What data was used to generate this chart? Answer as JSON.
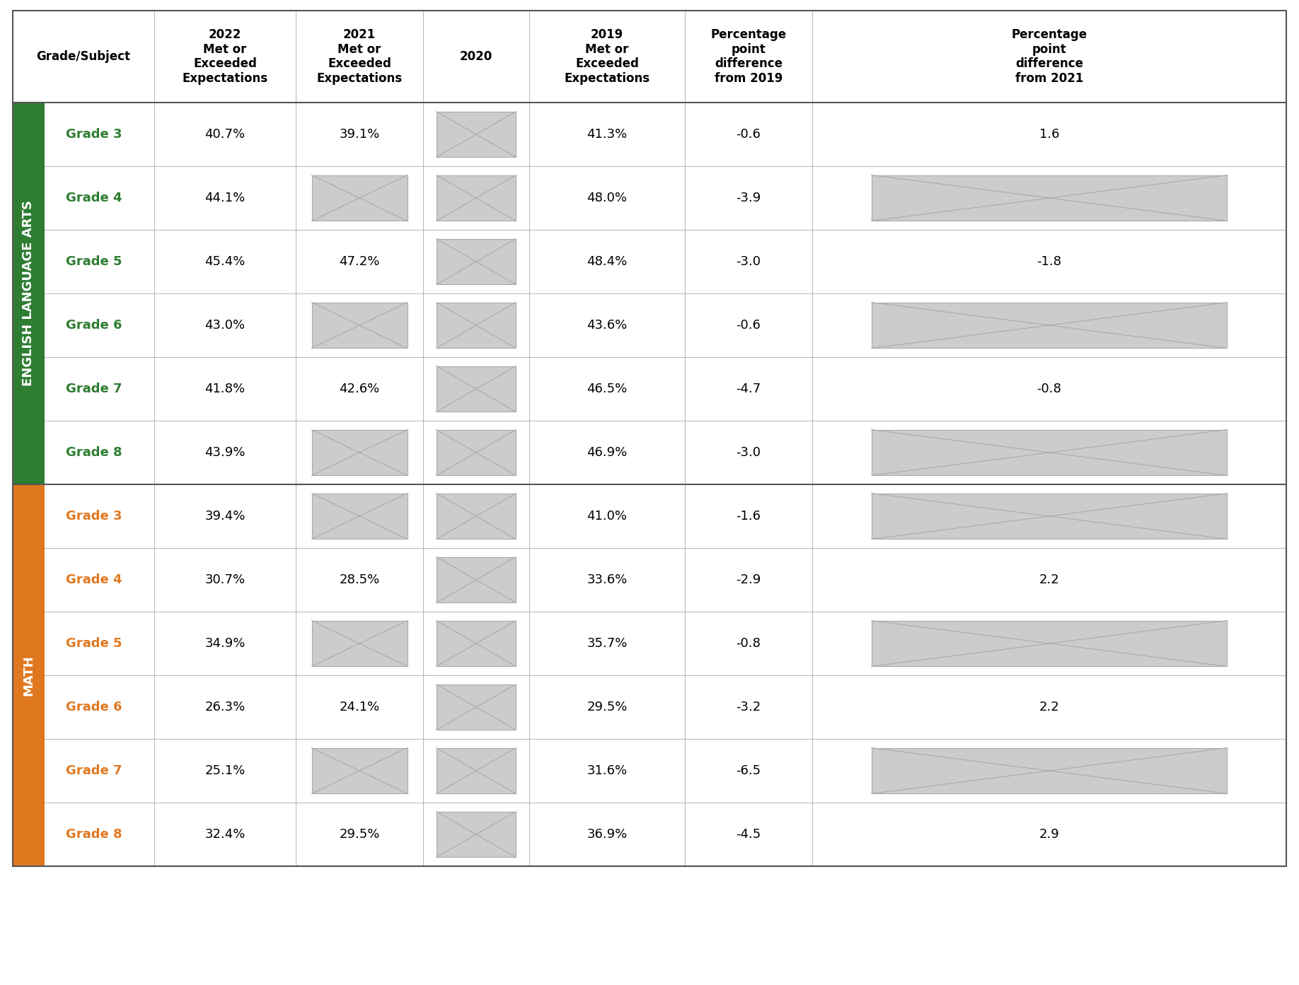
{
  "title_bg": "#ffffff",
  "header_bg": "#ffffff",
  "ela_color": "#2e7d32",
  "math_color": "#e07820",
  "grade_label_ela_color": "#2e7d32",
  "grade_label_math_color": "#e07820",
  "header_text_color": "#000000",
  "cell_text_color": "#000000",
  "na_box_color": "#cccccc",
  "na_box_line_color": "#aaaaaa",
  "row_line_color": "#bbbbbb",
  "section_line_color": "#555555",
  "outer_line_color": "#555555",
  "col_headers": [
    "Grade/Subject",
    "2022\nMet or\nExceeded\nExpectations",
    "2021\nMet or\nExceeded\nExpectations",
    "2020",
    "2019\nMet or\nExceeded\nExpectations",
    "Percentage\npoint\ndifference\nfrom 2019",
    "Percentage\npoint\ndifference\nfrom 2021"
  ],
  "ela_rows": [
    {
      "grade": "Grade 3",
      "v2022": "40.7%",
      "v2021": "39.1%",
      "v2020": null,
      "v2019": "41.3%",
      "diff2019": "-0.6",
      "diff2021": "1.6"
    },
    {
      "grade": "Grade 4",
      "v2022": "44.1%",
      "v2021": null,
      "v2020": null,
      "v2019": "48.0%",
      "diff2019": "-3.9",
      "diff2021": null
    },
    {
      "grade": "Grade 5",
      "v2022": "45.4%",
      "v2021": "47.2%",
      "v2020": null,
      "v2019": "48.4%",
      "diff2019": "-3.0",
      "diff2021": "-1.8"
    },
    {
      "grade": "Grade 6",
      "v2022": "43.0%",
      "v2021": null,
      "v2020": null,
      "v2019": "43.6%",
      "diff2019": "-0.6",
      "diff2021": null
    },
    {
      "grade": "Grade 7",
      "v2022": "41.8%",
      "v2021": "42.6%",
      "v2020": null,
      "v2019": "46.5%",
      "diff2019": "-4.7",
      "diff2021": "-0.8"
    },
    {
      "grade": "Grade 8",
      "v2022": "43.9%",
      "v2021": null,
      "v2020": null,
      "v2019": "46.9%",
      "diff2019": "-3.0",
      "diff2021": null
    }
  ],
  "math_rows": [
    {
      "grade": "Grade 3",
      "v2022": "39.4%",
      "v2021": null,
      "v2020": null,
      "v2019": "41.0%",
      "diff2019": "-1.6",
      "diff2021": null
    },
    {
      "grade": "Grade 4",
      "v2022": "30.7%",
      "v2021": "28.5%",
      "v2020": null,
      "v2019": "33.6%",
      "diff2019": "-2.9",
      "diff2021": "2.2"
    },
    {
      "grade": "Grade 5",
      "v2022": "34.9%",
      "v2021": null,
      "v2020": null,
      "v2019": "35.7%",
      "diff2019": "-0.8",
      "diff2021": null
    },
    {
      "grade": "Grade 6",
      "v2022": "26.3%",
      "v2021": "24.1%",
      "v2020": null,
      "v2019": "29.5%",
      "diff2019": "-3.2",
      "diff2021": "2.2"
    },
    {
      "grade": "Grade 7",
      "v2022": "25.1%",
      "v2021": null,
      "v2020": null,
      "v2019": "31.6%",
      "diff2019": "-6.5",
      "diff2021": null
    },
    {
      "grade": "Grade 8",
      "v2022": "32.4%",
      "v2021": "29.5%",
      "v2020": null,
      "v2019": "36.9%",
      "diff2019": "-4.5",
      "diff2021": "2.9"
    }
  ]
}
